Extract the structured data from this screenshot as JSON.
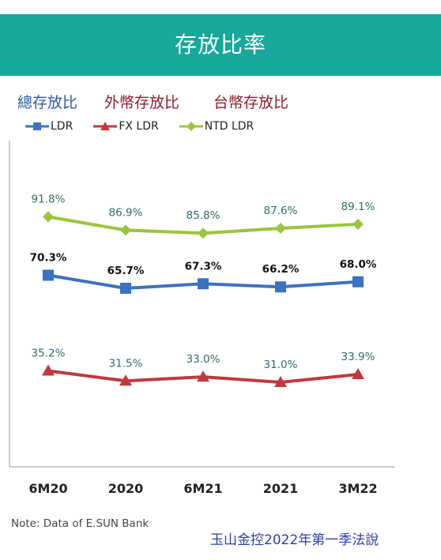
{
  "header": {
    "title": "存放比率"
  },
  "category_labels": {
    "total": "總存放比",
    "foreign": "外幣存放比",
    "ntd": "台幣存放比"
  },
  "legend": {
    "ldr": "LDR",
    "fx": "FX LDR",
    "ntd": "NTD LDR"
  },
  "note": "Note: Data of E.SUN Bank",
  "source": "玉山金控2022年第一季法說",
  "colors": {
    "header": "#14a99a",
    "ldr": "#3c72c0",
    "fx": "#c0393d",
    "ntd": "#9ac53c"
  },
  "chart_data": {
    "type": "line",
    "categories": [
      "6M20",
      "2020",
      "6M21",
      "2021",
      "3M22"
    ],
    "series": [
      {
        "name": "NTD LDR",
        "values": [
          91.8,
          86.9,
          85.8,
          87.6,
          89.1
        ],
        "labels": [
          "91.8%",
          "86.9%",
          "85.8%",
          "87.6%",
          "89.1%"
        ],
        "marker": "diamond"
      },
      {
        "name": "LDR",
        "values": [
          70.3,
          65.7,
          67.3,
          66.2,
          68.0
        ],
        "labels": [
          "70.3%",
          "65.7%",
          "67.3%",
          "66.2%",
          "68.0%"
        ],
        "marker": "square"
      },
      {
        "name": "FX LDR",
        "values": [
          35.2,
          31.5,
          33.0,
          31.0,
          33.9
        ],
        "labels": [
          "35.2%",
          "31.5%",
          "33.0%",
          "31.0%",
          "33.9%"
        ],
        "marker": "triangle"
      }
    ],
    "grid": false
  }
}
